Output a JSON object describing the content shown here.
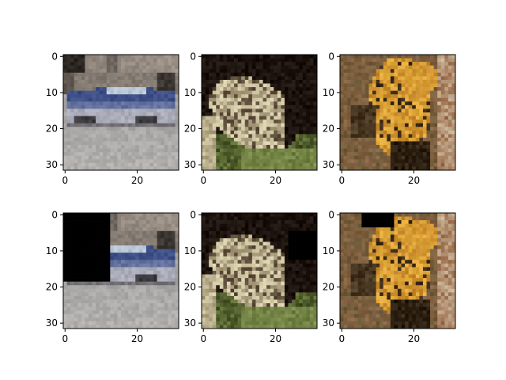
{
  "figure": {
    "background": "#ffffff",
    "grid": {
      "rows": 2,
      "cols": 3
    },
    "image_resolution": 32,
    "axis": {
      "x_ticks": [
        0,
        20
      ],
      "y_ticks": [
        0,
        10,
        20,
        30
      ],
      "xlim": [
        -0.5,
        31.5
      ],
      "ylim": [
        31.5,
        -0.5
      ]
    },
    "panels": [
      {
        "name": "panel-car-original",
        "subject": "blue car on road in front of building",
        "row": 0,
        "col": 0,
        "palette": {
          "sky": "#2a2420",
          "wall": "#8c8279",
          "car": "#3d4f86",
          "window": "#b9c6d6",
          "ground": "#a8a6a4",
          "shadow": "#3b3a3f"
        },
        "occlusion": null
      },
      {
        "name": "panel-frog-original",
        "subject": "frog on grass, dark background",
        "row": 0,
        "col": 1,
        "palette": {
          "background": "#1c120d",
          "body": "#a59878",
          "highlight": "#d4cba8",
          "grass": "#6a7a3c",
          "shadow": "#5a4a38"
        },
        "occlusion": null
      },
      {
        "name": "panel-cat-original",
        "subject": "orange cat, brown cluttered background",
        "row": 0,
        "col": 2,
        "palette": {
          "background": "#6d5a3a",
          "fur": "#c8892a",
          "highlight": "#e1a93a",
          "dark": "#3a2a18",
          "accent": "#9a6a48"
        },
        "occlusion": null
      },
      {
        "name": "panel-car-occluded",
        "subject": "blue car on road in front of building",
        "row": 1,
        "col": 0,
        "palette": {
          "sky": "#2a2420",
          "wall": "#8c8279",
          "car": "#3d4f86",
          "window": "#b9c6d6",
          "ground": "#a8a6a4",
          "shadow": "#3b3a3f"
        },
        "occlusion": {
          "x": [
            0,
            12
          ],
          "y": [
            0,
            18
          ],
          "color": "#000000"
        }
      },
      {
        "name": "panel-frog-occluded",
        "subject": "frog on grass, dark background",
        "row": 1,
        "col": 1,
        "palette": {
          "background": "#1c120d",
          "body": "#a59878",
          "highlight": "#d4cba8",
          "grass": "#6a7a3c",
          "shadow": "#5a4a38"
        },
        "occlusion": {
          "x": [
            24,
            31
          ],
          "y": [
            5,
            12
          ],
          "color": "#000000"
        }
      },
      {
        "name": "panel-cat-occluded",
        "subject": "orange cat, brown cluttered background",
        "row": 1,
        "col": 2,
        "palette": {
          "background": "#6d5a3a",
          "fur": "#c8892a",
          "highlight": "#e1a93a",
          "dark": "#3a2a18",
          "accent": "#9a6a48"
        },
        "occlusion": {
          "x": [
            6,
            14
          ],
          "y": [
            0,
            3
          ],
          "color": "#000000"
        }
      }
    ]
  }
}
